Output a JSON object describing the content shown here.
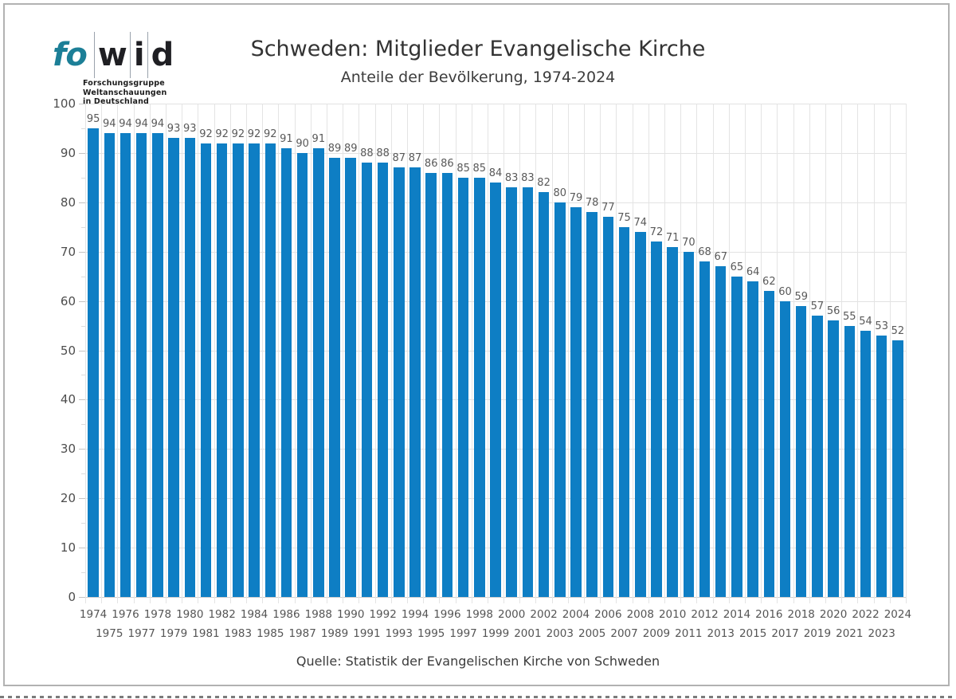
{
  "logo": {
    "name_fo": "fo",
    "name_w": "w",
    "name_i": "i",
    "name_d": "d",
    "tagline_lines": [
      "Forschungsgruppe",
      "Weltanschauungen",
      "in Deutschland"
    ],
    "accent_color": "#1c7f97"
  },
  "header": {
    "title": "Schweden: Mitglieder Evangelische Kirche",
    "subtitle": "Anteile der Bevölkerung, 1974-2024"
  },
  "footer": {
    "source": "Quelle: Statistik der Evangelischen Kirche von Schweden"
  },
  "chart_data": {
    "type": "bar",
    "title": "Schweden: Mitglieder Evangelische Kirche",
    "subtitle": "Anteile der Bevölkerung, 1974-2024",
    "source": "Quelle: Statistik der Evangelischen Kirche von Schweden",
    "categories": [
      "1974",
      "1975",
      "1976",
      "1977",
      "1978",
      "1979",
      "1980",
      "1981",
      "1982",
      "1983",
      "1984",
      "1985",
      "1986",
      "1987",
      "1988",
      "1989",
      "1990",
      "1991",
      "1992",
      "1993",
      "1994",
      "1995",
      "1996",
      "1997",
      "1998",
      "1999",
      "2000",
      "2001",
      "2002",
      "2003",
      "2004",
      "2005",
      "2006",
      "2007",
      "2008",
      "2009",
      "2010",
      "2011",
      "2012",
      "2013",
      "2014",
      "2015",
      "2016",
      "2017",
      "2018",
      "2019",
      "2020",
      "2021",
      "2022",
      "2023",
      "2024"
    ],
    "values": [
      95,
      94,
      94,
      94,
      94,
      93,
      93,
      92,
      92,
      92,
      92,
      92,
      91,
      90,
      91,
      89,
      89,
      88,
      88,
      87,
      87,
      86,
      86,
      85,
      85,
      84,
      83,
      83,
      82,
      80,
      79,
      78,
      77,
      75,
      74,
      72,
      71,
      70,
      68,
      67,
      65,
      64,
      62,
      60,
      59,
      57,
      56,
      55,
      54,
      53,
      52
    ],
    "unit": "percent",
    "ylim": [
      0,
      100
    ],
    "yticks": [
      0,
      10,
      20,
      30,
      40,
      50,
      60,
      70,
      80,
      90,
      100
    ],
    "bar_color": "#0e7ec4",
    "value_labels": true,
    "grid": true,
    "legend": false,
    "x_label_rows": "alternating"
  }
}
